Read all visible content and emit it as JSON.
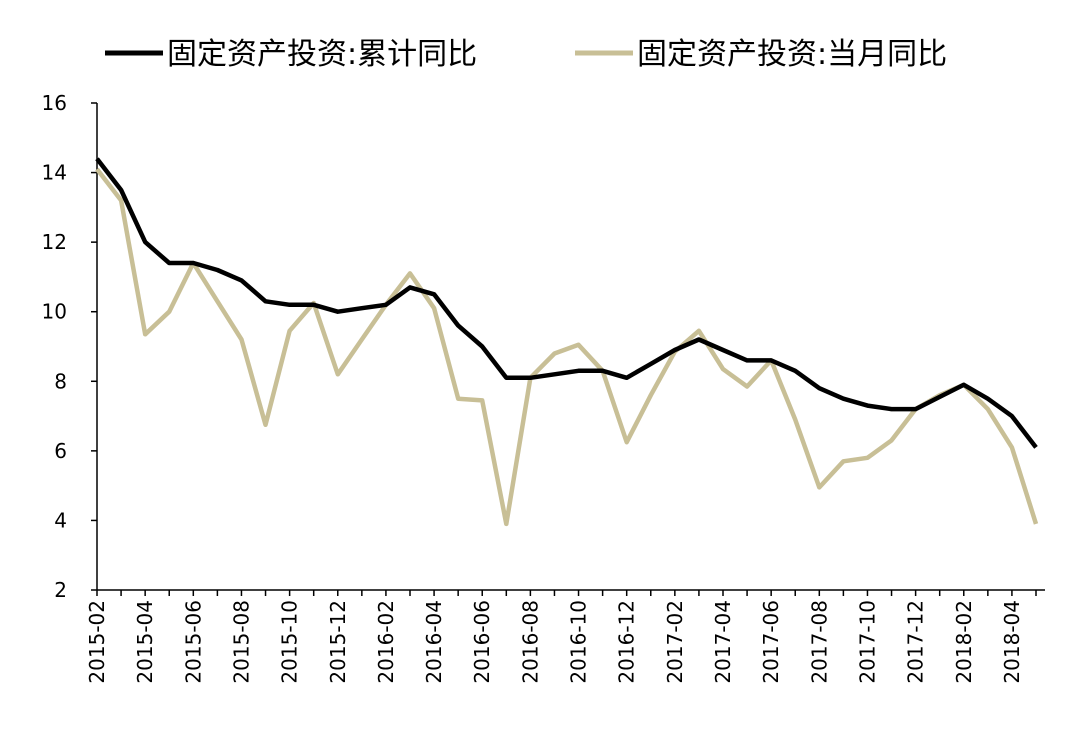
{
  "chart_data": {
    "type": "line",
    "categories": [
      "2015-02",
      null,
      "2015-04",
      null,
      "2015-06",
      null,
      "2015-08",
      null,
      "2015-10",
      null,
      "2015-12",
      null,
      "2016-02",
      null,
      "2016-04",
      null,
      "2016-06",
      null,
      "2016-08",
      null,
      "2016-10",
      null,
      "2016-12",
      null,
      "2017-02",
      null,
      "2017-04",
      null,
      "2017-06",
      null,
      "2017-08",
      null,
      "2017-10",
      null,
      "2017-12",
      null,
      "2018-02",
      null,
      "2018-04",
      null
    ],
    "series": [
      {
        "name": "固定资产投资:累计同比",
        "color": "#000000",
        "values": [
          14.4,
          13.5,
          12.0,
          11.4,
          11.4,
          11.2,
          10.9,
          10.3,
          10.2,
          10.2,
          10.0,
          10.1,
          10.2,
          10.7,
          10.5,
          9.6,
          9.0,
          8.1,
          8.1,
          8.2,
          8.3,
          8.3,
          8.1,
          8.5,
          8.9,
          9.2,
          8.9,
          8.6,
          8.6,
          8.3,
          7.8,
          7.5,
          7.3,
          7.2,
          7.2,
          7.55,
          7.9,
          7.5,
          7.0,
          6.1
        ]
      },
      {
        "name": "固定资产投资:当月同比",
        "color": "#c8bf96",
        "values": [
          14.1,
          13.2,
          9.35,
          10.0,
          11.4,
          10.3,
          9.2,
          6.75,
          9.45,
          10.25,
          8.2,
          9.2,
          10.2,
          11.1,
          10.1,
          7.5,
          7.45,
          3.9,
          8.1,
          8.8,
          9.05,
          8.3,
          6.25,
          7.6,
          8.85,
          9.45,
          8.35,
          7.85,
          8.6,
          6.9,
          4.95,
          5.7,
          5.8,
          6.3,
          7.2,
          7.6,
          7.9,
          7.2,
          6.1,
          3.9
        ]
      }
    ],
    "ylim": [
      2,
      16
    ],
    "yticks": [
      2,
      4,
      6,
      8,
      10,
      12,
      14,
      16
    ],
    "grid": false,
    "legend": "top"
  }
}
